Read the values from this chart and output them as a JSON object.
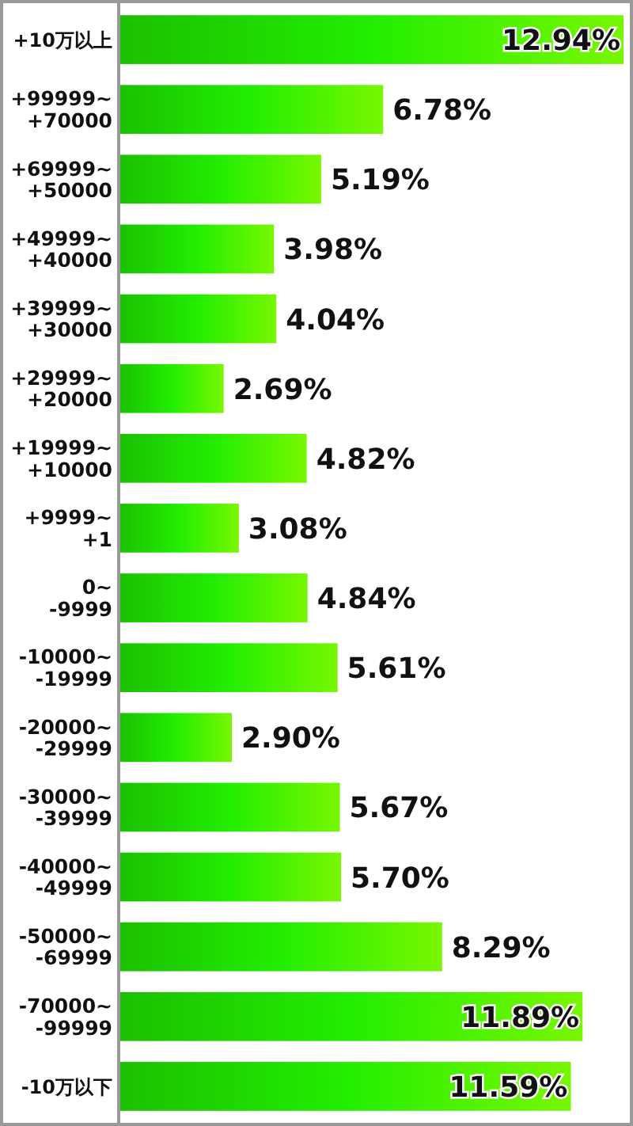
{
  "chart_data": {
    "type": "bar",
    "orientation": "horizontal",
    "categories": [
      "+10万以上",
      "+99999~\n+70000",
      "+69999~\n+50000",
      "+49999~\n+40000",
      "+39999~\n+30000",
      "+29999~\n+20000",
      "+19999~\n+10000",
      "+9999~\n+1",
      "0~\n-9999",
      "-10000~\n-19999",
      "-20000~\n-29999",
      "-30000~\n-39999",
      "-40000~\n-49999",
      "-50000~\n-69999",
      "-70000~\n-99999",
      "-10万以下"
    ],
    "values": [
      12.94,
      6.78,
      5.19,
      3.98,
      4.04,
      2.69,
      4.82,
      3.08,
      4.84,
      5.61,
      2.9,
      5.67,
      5.7,
      8.29,
      11.89,
      11.59
    ],
    "value_labels": [
      "12.94%",
      "6.78%",
      "5.19%",
      "3.98%",
      "4.04%",
      "2.69%",
      "4.82%",
      "3.08%",
      "4.84%",
      "5.61%",
      "2.90%",
      "5.67%",
      "5.70%",
      "8.29%",
      "11.89%",
      "11.59%"
    ],
    "color": "#22ee00"
  }
}
